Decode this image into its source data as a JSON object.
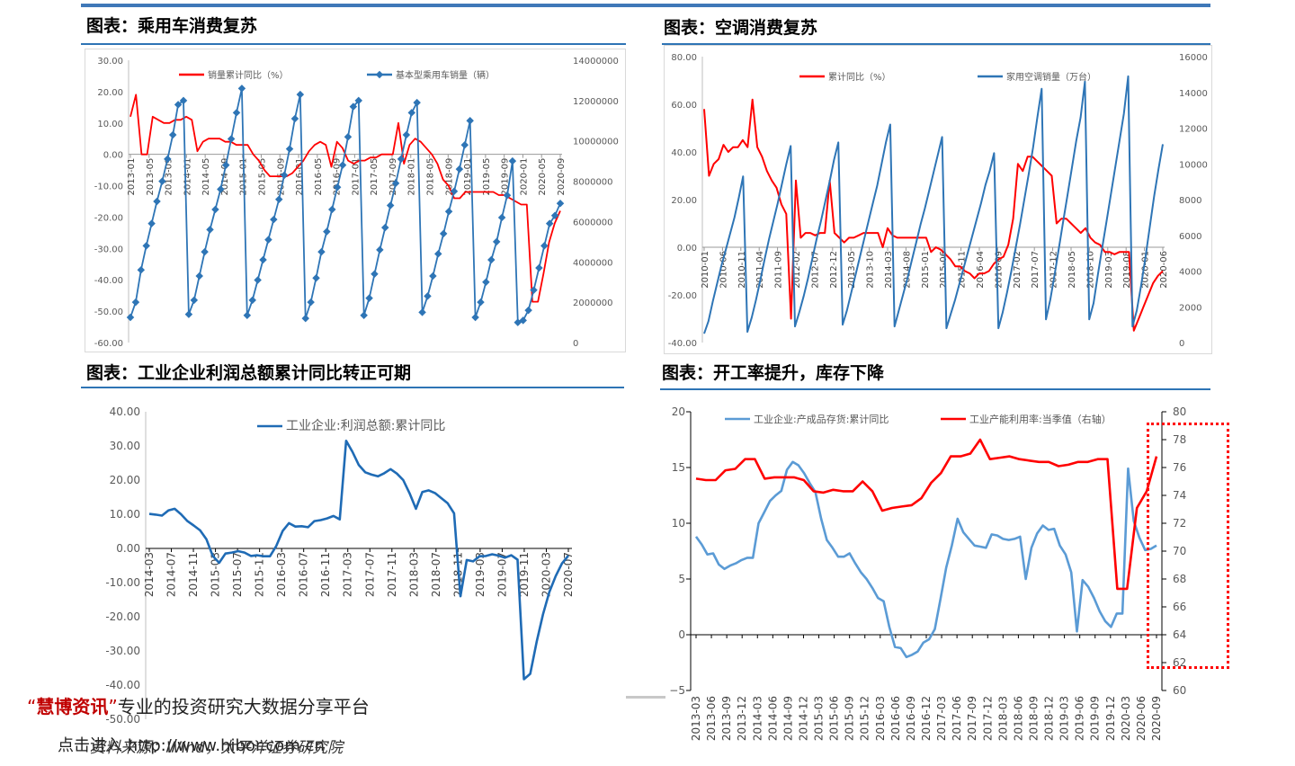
{
  "panels": [
    {
      "title": "图表：乘用车消费复苏"
    },
    {
      "title": "图表：空调消费复苏"
    },
    {
      "title": "图表：工业企业利润总额累计同比转正可期"
    },
    {
      "title": "图表：开工率提升，库存下降"
    }
  ],
  "watermark": {
    "quote_open": "“",
    "brand": "慧博资讯",
    "quote_close": "”",
    "tagline": "专业的投资研究大数据分享平台",
    "line2": "点击进入 http://www.hibor.com.cn"
  },
  "source": "资料来源：Wind，太平洋证券研究院",
  "chart_data": [
    {
      "type": "line",
      "legend": [
        "销量累计同比（%）",
        "基本型乘用车销量（辆）"
      ],
      "colors": [
        "#ff0000",
        "#2e75b6"
      ],
      "y_left": {
        "range": [
          -60,
          30
        ],
        "ticks": [
          "30.00",
          "20.00",
          "10.00",
          "0.00",
          "-10.00",
          "-20.00",
          "-30.00",
          "-40.00",
          "-50.00",
          "-60.00"
        ]
      },
      "y_right": {
        "range": [
          0,
          14000000
        ],
        "ticks": [
          "14000000",
          "12000000",
          "10000000",
          "8000000",
          "6000000",
          "4000000",
          "2000000",
          "0"
        ]
      },
      "x_labels": [
        "2013-01",
        "2013-05",
        "2013-09",
        "2014-01",
        "2014-05",
        "2014-09",
        "2015-01",
        "2015-05",
        "2015-09",
        "2016-01",
        "2016-05",
        "2016-09",
        "2017-01",
        "2017-05",
        "2017-09",
        "2018-01",
        "2018-05",
        "2018-09",
        "2019-01",
        "2019-05",
        "2019-09",
        "2020-01",
        "2020-05",
        "2020-09"
      ],
      "series": [
        {
          "name": "销量累计同比（%）",
          "values": [
            12,
            19,
            0,
            0,
            12,
            11,
            10,
            10,
            11,
            11,
            12,
            11,
            1,
            4,
            5,
            5,
            5,
            4,
            4,
            3,
            3,
            3,
            0,
            -2,
            -5,
            -7,
            -7,
            -7,
            -7,
            -6,
            -4,
            -2,
            1,
            3,
            4,
            3,
            -4,
            4,
            2,
            -2,
            -3,
            -2,
            -2,
            -1,
            -1,
            0,
            0,
            0,
            10,
            -3,
            3,
            5,
            4,
            2,
            0,
            -3,
            -8,
            -10,
            -14,
            -14,
            -12,
            -12,
            -12,
            -12,
            -12,
            -12,
            -13,
            -13,
            -14,
            -15,
            -16,
            -16,
            -47,
            -47,
            -38,
            -28,
            -22,
            -18
          ]
        },
        {
          "name": "基本型乘用车销量（辆）",
          "values": [
            1250000,
            2000000,
            3600000,
            4800000,
            5900000,
            7000000,
            8000000,
            9100000,
            10300000,
            11800000,
            12000000,
            1400000,
            2100000,
            3300000,
            4500000,
            5600000,
            6600000,
            7600000,
            8800000,
            10100000,
            11400000,
            12600000,
            1350000,
            2100000,
            3100000,
            4100000,
            5100000,
            6100000,
            7100000,
            8300000,
            9600000,
            11100000,
            12300000,
            1200000,
            2000000,
            3200000,
            4500000,
            5500000,
            6600000,
            7700000,
            8800000,
            10200000,
            11700000,
            12000000,
            1350000,
            2200000,
            3400000,
            4600000,
            5700000,
            6800000,
            7900000,
            9100000,
            10300000,
            11400000,
            11900000,
            1500000,
            2300000,
            3300000,
            4400000,
            5400000,
            6500000,
            7500000,
            8600000,
            9800000,
            11000000,
            1250000,
            2000000,
            3000000,
            4100000,
            5000000,
            6200000,
            7300000,
            9000000,
            1000000,
            1100000,
            1600000,
            2600000,
            3700000,
            4800000,
            5900000,
            6300000,
            6900000
          ]
        }
      ]
    },
    {
      "type": "line",
      "legend": [
        "累计同比（%）",
        "家用空调销量（万台）"
      ],
      "colors": [
        "#ff0000",
        "#2e75b6"
      ],
      "y_left": {
        "range": [
          -40,
          80
        ],
        "ticks": [
          "80.00",
          "60.00",
          "40.00",
          "20.00",
          "0.00",
          "-20.00",
          "-40.00"
        ]
      },
      "y_right": {
        "range": [
          0,
          16000
        ],
        "ticks": [
          "16000",
          "14000",
          "12000",
          "10000",
          "8000",
          "6000",
          "4000",
          "2000",
          "0"
        ]
      },
      "x_labels": [
        "2010-01",
        "2010-06",
        "2010-11",
        "2011-04",
        "2011-09",
        "2012-02",
        "2012-07",
        "2012-12",
        "2013-05",
        "2013-10",
        "2014-03",
        "2014-08",
        "2015-01",
        "2015-06",
        "2015-11",
        "2016-04",
        "2016-09",
        "2017-02",
        "2017-07",
        "2017-12",
        "2018-05",
        "2018-10",
        "2019-03",
        "2019-08",
        "2020-01",
        "2020-06"
      ],
      "series": [
        {
          "name": "累计同比（%）",
          "values": [
            58,
            30,
            35,
            37,
            43,
            40,
            42,
            42,
            45,
            42,
            62,
            42,
            38,
            32,
            28,
            25,
            18,
            14,
            -30,
            28,
            4,
            6,
            6,
            5,
            6,
            6,
            28,
            6,
            4,
            2,
            4,
            4,
            5,
            6,
            6,
            6,
            6,
            0,
            8,
            5,
            4,
            4,
            4,
            4,
            4,
            4,
            4,
            -2,
            0,
            -1,
            -3,
            -5,
            -8,
            -8,
            -10,
            -11,
            -13,
            -11,
            -11,
            -10,
            -7,
            -5,
            -4,
            1,
            12,
            35,
            32,
            38,
            38,
            36,
            34,
            32,
            30,
            10,
            12,
            12,
            10,
            8,
            6,
            8,
            4,
            2,
            1,
            -2,
            -2,
            -3,
            -2,
            -2,
            -2,
            -35,
            -30,
            -25,
            -20,
            -15,
            -12,
            -10
          ]
        },
        {
          "name": "家用空调销量（万台）",
          "values": [
            500,
            1200,
            2300,
            3300,
            4300,
            5200,
            6100,
            7000,
            8100,
            9300,
            600,
            1400,
            2400,
            3500,
            4700,
            5800,
            6800,
            7800,
            8900,
            10000,
            11000,
            900,
            1700,
            2600,
            3600,
            4700,
            5800,
            6800,
            7900,
            9000,
            10200,
            11200,
            1000,
            1800,
            2800,
            3800,
            4800,
            5800,
            6800,
            7800,
            8800,
            10000,
            11200,
            12200,
            900,
            1800,
            2700,
            3600,
            4600,
            5600,
            6600,
            7500,
            8500,
            9500,
            10500,
            11500,
            800,
            1600,
            2400,
            3300,
            4200,
            5100,
            6000,
            6900,
            7800,
            8800,
            9600,
            10600,
            800,
            1700,
            2800,
            4000,
            5300,
            6600,
            8000,
            9400,
            10900,
            12600,
            14200,
            1300,
            2400,
            3800,
            5300,
            6800,
            8300,
            9800,
            11300,
            12600,
            14600,
            1300,
            2200,
            3800,
            5300,
            6800,
            8300,
            9800,
            11300,
            12800,
            14900,
            900,
            1800,
            3200,
            4800,
            6500,
            8200,
            9700,
            11100
          ]
        }
      ]
    },
    {
      "type": "line",
      "legend": [
        "工业企业:利润总额:累计同比"
      ],
      "colors": [
        "#1f6bb5"
      ],
      "y_left": {
        "range": [
          -50,
          40
        ],
        "ticks": [
          "40.00",
          "30.00",
          "20.00",
          "10.00",
          "0.00",
          "-10.00",
          "-20.00",
          "-30.00",
          "-40.00",
          "-50.00"
        ]
      },
      "x_labels": [
        "2014-03",
        "2014-07",
        "2014-11",
        "2015-03",
        "2015-07",
        "2015-11",
        "2016-03",
        "2016-07",
        "2016-11",
        "2017-03",
        "2017-07",
        "2017-11",
        "2018-03",
        "2018-07",
        "2018-11",
        "2019-03",
        "2019-07",
        "2019-11",
        "2020-03",
        "2020-07"
      ],
      "series": [
        {
          "name": "工业企业:利润总额:累计同比",
          "values": [
            10.1,
            9.9,
            9.6,
            11.1,
            11.6,
            10.0,
            8.0,
            6.7,
            5.3,
            2.7,
            -2.2,
            -4.2,
            -1.5,
            -1.2,
            -0.8,
            -1.2,
            -2.2,
            -2.0,
            -2.3,
            -2.3,
            0.7,
            5.1,
            7.4,
            6.4,
            6.5,
            6.2,
            8.0,
            8.3,
            8.8,
            9.5,
            8.5,
            31.5,
            28.3,
            24.4,
            22.3,
            21.6,
            21.1,
            22.0,
            23.2,
            21.9,
            20.0,
            16.1,
            11.6,
            16.5,
            17.0,
            16.2,
            14.7,
            13.2,
            10.3,
            -14.0,
            -3.4,
            -3.8,
            -2.3,
            -2.2,
            -1.7,
            -2.1,
            -2.7,
            -2.0,
            -3.3,
            -38.3,
            -36.7,
            -27.4,
            -19.3,
            -12.8,
            -8.1,
            -4.4,
            -2.1
          ]
        }
      ]
    },
    {
      "type": "line",
      "legend": [
        "工业企业:产成品存货:累计同比",
        "工业产能利用率:当季值（右轴）"
      ],
      "colors": [
        "#5b9bd5",
        "#ff0000"
      ],
      "y_left": {
        "range": [
          -5,
          20
        ],
        "ticks": [
          "20",
          "15",
          "10",
          "5",
          "0",
          "−5"
        ]
      },
      "y_right": {
        "range": [
          60,
          80
        ],
        "ticks": [
          "80",
          "78",
          "76",
          "74",
          "72",
          "70",
          "68",
          "66",
          "64",
          "62",
          "60"
        ]
      },
      "x_labels": [
        "2013-03",
        "2013-06",
        "2013-09",
        "2013-12",
        "2014-03",
        "2014-06",
        "2014-09",
        "2014-12",
        "2015-03",
        "2015-06",
        "2015-09",
        "2015-12",
        "2016-03",
        "2016-06",
        "2016-09",
        "2016-12",
        "2017-03",
        "2017-06",
        "2017-09",
        "2017-12",
        "2018-03",
        "2018-06",
        "2018-09",
        "2018-12",
        "2019-03",
        "2019-06",
        "2019-09",
        "2019-12",
        "2020-03",
        "2020-06",
        "2020-09"
      ],
      "series": [
        {
          "name": "工业企业:产成品存货:累计同比",
          "values": [
            8.8,
            8.1,
            7.2,
            7.3,
            6.3,
            5.9,
            6.2,
            6.4,
            6.7,
            6.9,
            6.9,
            10.0,
            11.0,
            12.0,
            12.5,
            12.9,
            14.8,
            15.5,
            15.2,
            14.5,
            13.6,
            12.8,
            10.4,
            8.5,
            7.8,
            7.0,
            7.0,
            7.3,
            6.4,
            5.6,
            5.0,
            4.2,
            3.3,
            3.0,
            0.7,
            -1.1,
            -1.2,
            -2.0,
            -1.8,
            -1.5,
            -0.7,
            -0.4,
            0.5,
            3.2,
            6.0,
            8.0,
            10.4,
            9.2,
            8.6,
            8.0,
            7.9,
            7.8,
            9.0,
            8.9,
            8.6,
            8.5,
            8.6,
            8.8,
            5.0,
            7.8,
            9.1,
            9.8,
            9.4,
            9.5,
            8.0,
            7.2,
            5.6,
            0.3,
            4.9,
            4.3,
            3.3,
            2.1,
            1.2,
            0.7,
            1.9,
            1.9,
            14.9,
            10.2,
            8.7,
            7.6,
            7.7,
            8.0
          ]
        },
        {
          "name": "工业产能利用率:当季值（右轴）",
          "values": [
            75.2,
            75.1,
            75.1,
            75.8,
            75.9,
            76.6,
            76.6,
            75.2,
            75.3,
            75.3,
            75.3,
            75.1,
            74.3,
            74.2,
            74.4,
            74.3,
            74.3,
            75.0,
            74.3,
            72.9,
            73.1,
            73.2,
            73.3,
            73.8,
            74.9,
            75.6,
            76.8,
            76.8,
            77.0,
            78.0,
            76.6,
            76.7,
            76.8,
            76.6,
            76.5,
            76.4,
            76.4,
            76.1,
            76.2,
            76.4,
            76.4,
            76.6,
            76.6,
            67.3,
            67.3,
            73.1,
            74.3,
            76.8
          ]
        }
      ]
    }
  ]
}
